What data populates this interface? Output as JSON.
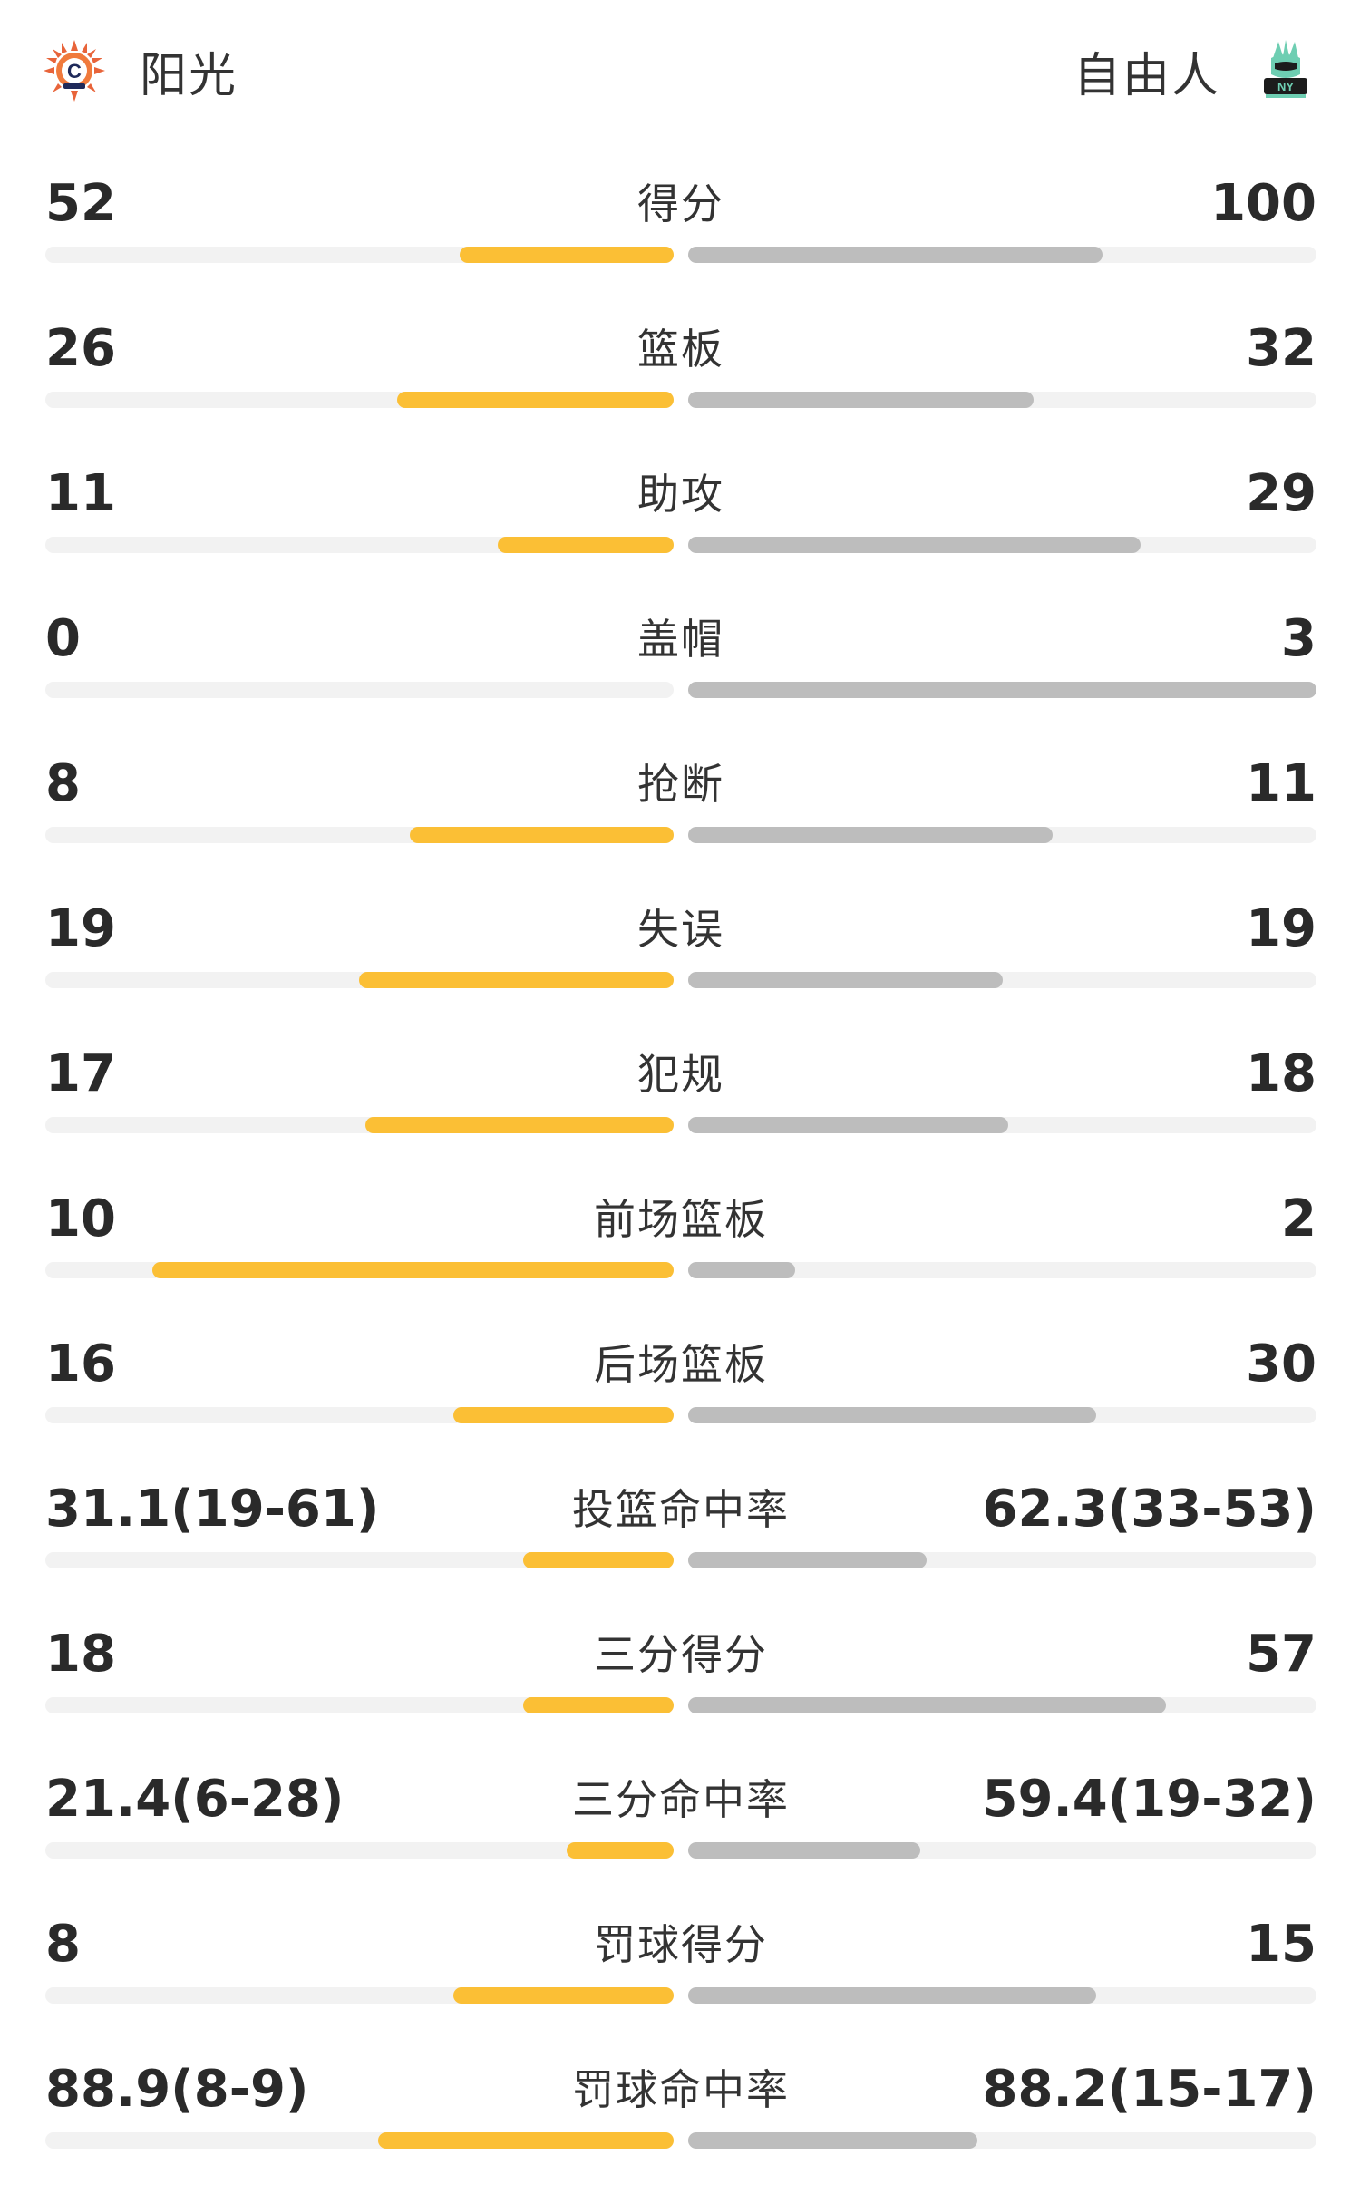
{
  "header": {
    "home_team": "阳光",
    "away_team": "自由人",
    "home_logo_icon": "sun-team-logo-icon",
    "away_logo_icon": "liberty-team-logo-icon"
  },
  "colors": {
    "home_bar": "#fbbf35",
    "away_bar": "#bdbdbd",
    "track": "#f2f2f2"
  },
  "stats": [
    {
      "label": "得分",
      "home": "52",
      "away": "100",
      "home_fill": 0.34,
      "away_fill": 0.66
    },
    {
      "label": "篮板",
      "home": "26",
      "away": "32",
      "home_fill": 0.44,
      "away_fill": 0.55
    },
    {
      "label": "助攻",
      "home": "11",
      "away": "29",
      "home_fill": 0.28,
      "away_fill": 0.72
    },
    {
      "label": "盖帽",
      "home": "0",
      "away": "3",
      "home_fill": 0.0,
      "away_fill": 1.0
    },
    {
      "label": "抢断",
      "home": "8",
      "away": "11",
      "home_fill": 0.42,
      "away_fill": 0.58
    },
    {
      "label": "失误",
      "home": "19",
      "away": "19",
      "home_fill": 0.5,
      "away_fill": 0.5
    },
    {
      "label": "犯规",
      "home": "17",
      "away": "18",
      "home_fill": 0.49,
      "away_fill": 0.51
    },
    {
      "label": "前场篮板",
      "home": "10",
      "away": "2",
      "home_fill": 0.83,
      "away_fill": 0.17
    },
    {
      "label": "后场篮板",
      "home": "16",
      "away": "30",
      "home_fill": 0.35,
      "away_fill": 0.65
    },
    {
      "label": "投篮命中率",
      "home": "31.1(19-61)",
      "away": "62.3(33-53)",
      "home_fill": 0.24,
      "away_fill": 0.38
    },
    {
      "label": "三分得分",
      "home": "18",
      "away": "57",
      "home_fill": 0.24,
      "away_fill": 0.76
    },
    {
      "label": "三分命中率",
      "home": "21.4(6-28)",
      "away": "59.4(19-32)",
      "home_fill": 0.17,
      "away_fill": 0.37
    },
    {
      "label": "罚球得分",
      "home": "8",
      "away": "15",
      "home_fill": 0.35,
      "away_fill": 0.65
    },
    {
      "label": "罚球命中率",
      "home": "88.9(8-9)",
      "away": "88.2(15-17)",
      "home_fill": 0.47,
      "away_fill": 0.46
    }
  ]
}
